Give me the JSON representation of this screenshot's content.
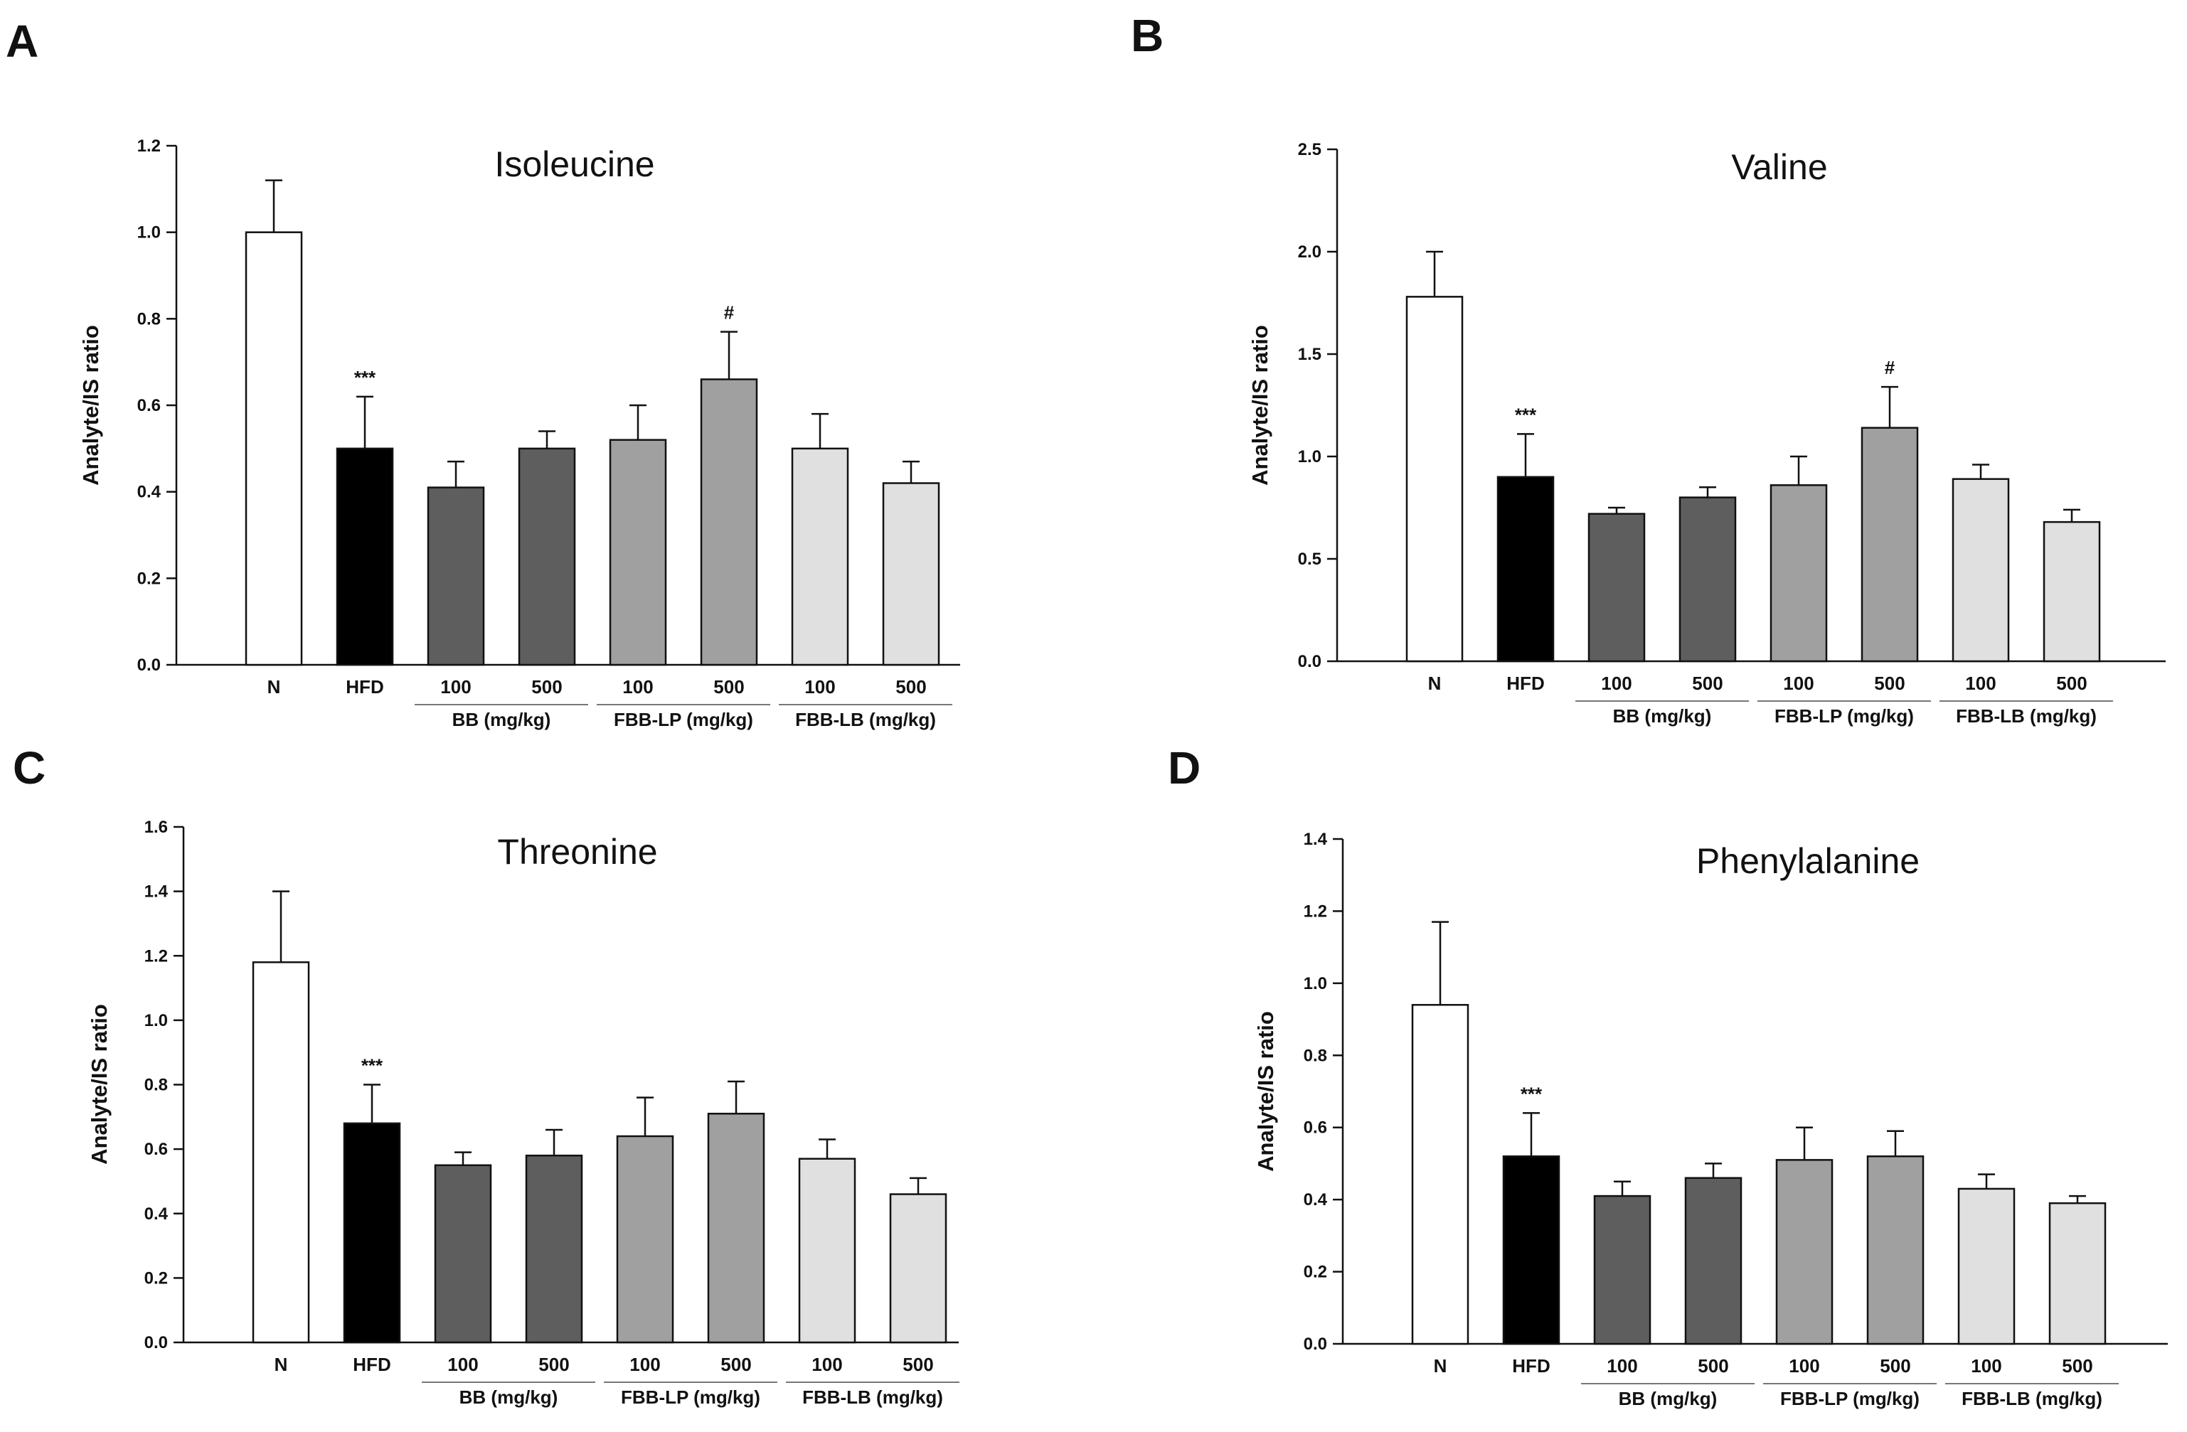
{
  "chart_data": [
    {
      "panel": "A",
      "type": "bar",
      "title": "Isoleucine",
      "ylabel": "Analyte/IS ratio",
      "xlabel": "",
      "ylim": [
        0,
        1.2
      ],
      "yticks": [
        "0.0",
        "0.2",
        "0.4",
        "0.6",
        "0.8",
        "1.0",
        "1.2"
      ],
      "categories": [
        "N",
        "HFD",
        "100",
        "500",
        "100",
        "500",
        "100",
        "500"
      ],
      "groups": [
        "BB (mg/kg)",
        "FBB-LP (mg/kg)",
        "FBB-LB (mg/kg)"
      ],
      "values": [
        1.0,
        0.5,
        0.41,
        0.5,
        0.52,
        0.66,
        0.5,
        0.42
      ],
      "errors": [
        0.12,
        0.12,
        0.06,
        0.04,
        0.08,
        0.11,
        0.08,
        0.05
      ],
      "annotations": [
        "",
        "***",
        "",
        "",
        "",
        "#",
        "",
        ""
      ],
      "colors": [
        "#ffffff",
        "#000000",
        "#5e5e5e",
        "#5e5e5e",
        "#a0a0a0",
        "#a0a0a0",
        "#e0e0e0",
        "#e0e0e0"
      ],
      "legend": "none",
      "grid": false
    },
    {
      "panel": "B",
      "type": "bar",
      "title": "Valine",
      "ylabel": "Analyte/IS ratio",
      "xlabel": "",
      "ylim": [
        0,
        2.5
      ],
      "yticks": [
        "0.0",
        "0.5",
        "1.0",
        "1.5",
        "2.0",
        "2.5"
      ],
      "categories": [
        "N",
        "HFD",
        "100",
        "500",
        "100",
        "500",
        "100",
        "500"
      ],
      "groups": [
        "BB (mg/kg)",
        "FBB-LP (mg/kg)",
        "FBB-LB (mg/kg)"
      ],
      "values": [
        1.78,
        0.9,
        0.72,
        0.8,
        0.86,
        1.14,
        0.89,
        0.68
      ],
      "errors": [
        0.22,
        0.21,
        0.03,
        0.05,
        0.14,
        0.2,
        0.07,
        0.06
      ],
      "annotations": [
        "",
        "***",
        "",
        "",
        "",
        "#",
        "",
        ""
      ],
      "colors": [
        "#ffffff",
        "#000000",
        "#5e5e5e",
        "#5e5e5e",
        "#a0a0a0",
        "#a0a0a0",
        "#e0e0e0",
        "#e0e0e0"
      ],
      "legend": "none",
      "grid": false
    },
    {
      "panel": "C",
      "type": "bar",
      "title": "Threonine",
      "ylabel": "Analyte/IS ratio",
      "xlabel": "",
      "ylim": [
        0,
        1.6
      ],
      "yticks": [
        "0.0",
        "0.2",
        "0.4",
        "0.6",
        "0.8",
        "1.0",
        "1.2",
        "1.4",
        "1.6"
      ],
      "categories": [
        "N",
        "HFD",
        "100",
        "500",
        "100",
        "500",
        "100",
        "500"
      ],
      "groups": [
        "BB (mg/kg)",
        "FBB-LP (mg/kg)",
        "FBB-LB (mg/kg)"
      ],
      "values": [
        1.18,
        0.68,
        0.55,
        0.58,
        0.64,
        0.71,
        0.57,
        0.46
      ],
      "errors": [
        0.22,
        0.12,
        0.04,
        0.08,
        0.12,
        0.1,
        0.06,
        0.05
      ],
      "annotations": [
        "",
        "***",
        "",
        "",
        "",
        "",
        "",
        ""
      ],
      "colors": [
        "#ffffff",
        "#000000",
        "#5e5e5e",
        "#5e5e5e",
        "#a0a0a0",
        "#a0a0a0",
        "#e0e0e0",
        "#e0e0e0"
      ],
      "legend": "none",
      "grid": false
    },
    {
      "panel": "D",
      "type": "bar",
      "title": "Phenylalanine",
      "ylabel": "Analyte/IS ratio",
      "xlabel": "",
      "ylim": [
        0,
        1.4
      ],
      "yticks": [
        "0.0",
        "0.2",
        "0.4",
        "0.6",
        "0.8",
        "1.0",
        "1.2",
        "1.4"
      ],
      "categories": [
        "N",
        "HFD",
        "100",
        "500",
        "100",
        "500",
        "100",
        "500"
      ],
      "groups": [
        "BB (mg/kg)",
        "FBB-LP (mg/kg)",
        "FBB-LB (mg/kg)"
      ],
      "values": [
        0.94,
        0.52,
        0.41,
        0.46,
        0.51,
        0.52,
        0.43,
        0.39
      ],
      "errors": [
        0.23,
        0.12,
        0.04,
        0.04,
        0.09,
        0.07,
        0.04,
        0.02
      ],
      "annotations": [
        "",
        "***",
        "",
        "",
        "",
        "",
        "",
        ""
      ],
      "colors": [
        "#ffffff",
        "#000000",
        "#5e5e5e",
        "#5e5e5e",
        "#a0a0a0",
        "#a0a0a0",
        "#e0e0e0",
        "#e0e0e0"
      ],
      "legend": "none",
      "grid": false
    }
  ]
}
